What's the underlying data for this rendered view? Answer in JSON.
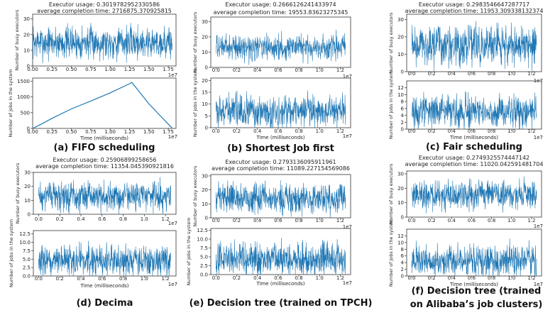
{
  "chart_data": [
    {
      "id": "a",
      "type": "line",
      "caption": "(a) FIFO scheduling",
      "header_lines": [
        "Executor usage: 0.3019782952330586",
        "average completion time: 2716875.370925815"
      ],
      "xlabel": "Time (milliseconds)",
      "xlim": [
        0,
        18500000.0
      ],
      "x_scale_label": "1e7",
      "x_ticks": [
        "0.00",
        "0.25",
        "0.50",
        "0.75",
        "1.00",
        "1.25",
        "1.50",
        "1.75"
      ],
      "top": {
        "ylabel": "Number of busy executors",
        "ylim": [
          0,
          33
        ],
        "y_ticks": [
          "0",
          "10",
          "20",
          "30"
        ],
        "y_tick_values": [
          0,
          10,
          20,
          30
        ],
        "mean": 15,
        "spread": 9,
        "x_end": 18000000.0
      },
      "bottom": {
        "ylabel": "Number of jobs in the system",
        "ylim": [
          0,
          1600
        ],
        "y_ticks": [
          "0",
          "500",
          "1000",
          "1500"
        ],
        "y_tick_values": [
          0,
          500,
          1000,
          1500
        ],
        "series": {
          "x": [
            0,
            1000000.0,
            2500000.0,
            5000000.0,
            7500000.0,
            10000000.0,
            12500000.0,
            12800000.0,
            15000000.0,
            18000000.0
          ],
          "y": [
            0,
            120,
            320,
            620,
            870,
            1130,
            1420,
            1460,
            780,
            10
          ]
        }
      }
    },
    {
      "id": "b",
      "type": "line",
      "caption": "(b) Shortest Job first",
      "header_lines": [
        "Executor usage: 0.2666126241433974",
        "average completion time: 19553.83623275345"
      ],
      "xlabel": "Time (milliseconds)",
      "xlim": [
        -500000.0,
        13000000.0
      ],
      "x_scale_label": "1e7",
      "x_ticks": [
        "0.0",
        "0.2",
        "0.4",
        "0.6",
        "0.8",
        "1.0",
        "1.2"
      ],
      "top": {
        "ylabel": "Number of busy executors",
        "ylim": [
          0,
          33
        ],
        "y_ticks": [
          "0",
          "10",
          "20",
          "30"
        ],
        "y_tick_values": [
          0,
          10,
          20,
          30
        ],
        "mean": 13,
        "spread": 7,
        "x_end": 12500000.0
      },
      "bottom": {
        "ylabel": "Number of jobs in the system",
        "ylim": [
          0,
          21
        ],
        "y_ticks": [
          "0",
          "5",
          "10",
          "15",
          "20"
        ],
        "y_tick_values": [
          0,
          5,
          10,
          15,
          20
        ],
        "mean": 7,
        "spread": 6,
        "x_end": 12500000.0
      }
    },
    {
      "id": "c",
      "type": "line",
      "caption": "(c) Fair scheduling",
      "header_lines": [
        "Executor usage: 0.2983546647287717",
        "average completion time: 11953.309338132374"
      ],
      "xlabel": "Time (milliseconds)",
      "xlim": [
        -500000.0,
        13000000.0
      ],
      "x_scale_label": "1e7",
      "x_ticks": [
        "0.0",
        "0.2",
        "0.4",
        "0.6",
        "0.8",
        "1.0",
        "1.2"
      ],
      "top": {
        "ylabel": "Number of busy executors",
        "ylim": [
          0,
          33
        ],
        "y_ticks": [
          "0",
          "10",
          "20",
          "30"
        ],
        "y_tick_values": [
          0,
          10,
          20,
          30
        ],
        "mean": 15,
        "spread": 10,
        "x_end": 12500000.0
      },
      "bottom": {
        "ylabel": "Number of jobs in the system",
        "ylim": [
          0,
          14
        ],
        "y_ticks": [
          "0",
          "2",
          "4",
          "6",
          "8",
          "10",
          "12"
        ],
        "y_tick_values": [
          0,
          2,
          4,
          6,
          8,
          10,
          12
        ],
        "mean": 5,
        "spread": 4,
        "x_end": 12500000.0
      }
    },
    {
      "id": "d",
      "type": "line",
      "caption": "(d) Decima",
      "header_lines": [
        "Executor usage: 0.25906899258656",
        "average completion time: 11354.045390921816"
      ],
      "xlabel": "Time (milliseconds)",
      "xlim": [
        -500000.0,
        13000000.0
      ],
      "x_scale_label": "1e7",
      "x_ticks": [
        "0.0",
        "0.2",
        "0.4",
        "0.6",
        "0.8",
        "1.0",
        "1.2"
      ],
      "top": {
        "ylabel": "Number of busy executors",
        "ylim": [
          0,
          30
        ],
        "y_ticks": [
          "0",
          "10",
          "20",
          "30"
        ],
        "y_tick_values": [
          0,
          10,
          20,
          30
        ],
        "mean": 13,
        "spread": 9,
        "x_end": 12500000.0
      },
      "bottom": {
        "ylabel": "Number of jobs in the system",
        "ylim": [
          0,
          13.5
        ],
        "y_ticks": [
          "0.0",
          "2.5",
          "5.0",
          "7.5",
          "10.0",
          "12.5"
        ],
        "y_tick_values": [
          0,
          2.5,
          5,
          7.5,
          10,
          12.5
        ],
        "mean": 4.5,
        "spread": 4,
        "x_end": 12500000.0
      }
    },
    {
      "id": "e",
      "type": "line",
      "caption": "(e) Decision tree (trained on TPCH)",
      "header_lines": [
        "Executor usage: 0.2793136095911961",
        "average completion time: 11089.227154569086"
      ],
      "xlabel": "Time (milliseconds)",
      "xlim": [
        -500000.0,
        13000000.0
      ],
      "x_scale_label": "1e7",
      "x_ticks": [
        "0.0",
        "0.2",
        "0.4",
        "0.6",
        "0.8",
        "1.0",
        "1.2"
      ],
      "top": {
        "ylabel": "Number of busy executors",
        "ylim": [
          0,
          31
        ],
        "y_ticks": [
          "0",
          "10",
          "20",
          "30"
        ],
        "y_tick_values": [
          0,
          10,
          20,
          30
        ],
        "mean": 14,
        "spread": 9,
        "x_end": 12500000.0
      },
      "bottom": {
        "ylabel": "Number of jobs in the system",
        "ylim": [
          0,
          13
        ],
        "y_ticks": [
          "0.0",
          "2.5",
          "5.0",
          "7.5",
          "10.0",
          "12.5"
        ],
        "y_tick_values": [
          0,
          2.5,
          5,
          7.5,
          10,
          12.5
        ],
        "mean": 4.5,
        "spread": 4,
        "x_end": 12500000.0
      }
    },
    {
      "id": "f",
      "type": "line",
      "caption_lines": [
        "(f) Decision tree (trained",
        "on Alibaba’s job clusters)"
      ],
      "header_lines": [
        "Executor usage: 0.2749325574447142",
        "average completion time: 11020.042591481704"
      ],
      "xlabel": "Time (milliseconds)",
      "xlim": [
        -500000.0,
        13000000.0
      ],
      "x_scale_label": "1e7",
      "x_ticks": [
        "0.0",
        "0.2",
        "0.4",
        "0.6",
        "0.8",
        "1.0",
        "1.2"
      ],
      "top": {
        "ylabel": "Number of busy executors",
        "ylim": [
          0,
          32
        ],
        "y_ticks": [
          "0",
          "10",
          "20",
          "30"
        ],
        "y_tick_values": [
          0,
          10,
          20,
          30
        ],
        "mean": 15,
        "spread": 9,
        "x_end": 12500000.0
      },
      "bottom": {
        "ylabel": "Number of jobs in the system",
        "ylim": [
          0,
          14
        ],
        "y_ticks": [
          "0",
          "2",
          "4",
          "6",
          "8",
          "10",
          "12"
        ],
        "y_tick_values": [
          0,
          2,
          4,
          6,
          8,
          10,
          12
        ],
        "mean": 4.5,
        "spread": 4,
        "x_end": 12500000.0
      }
    }
  ],
  "colors": {
    "line": "#1f77b4",
    "axis": "#333333"
  }
}
